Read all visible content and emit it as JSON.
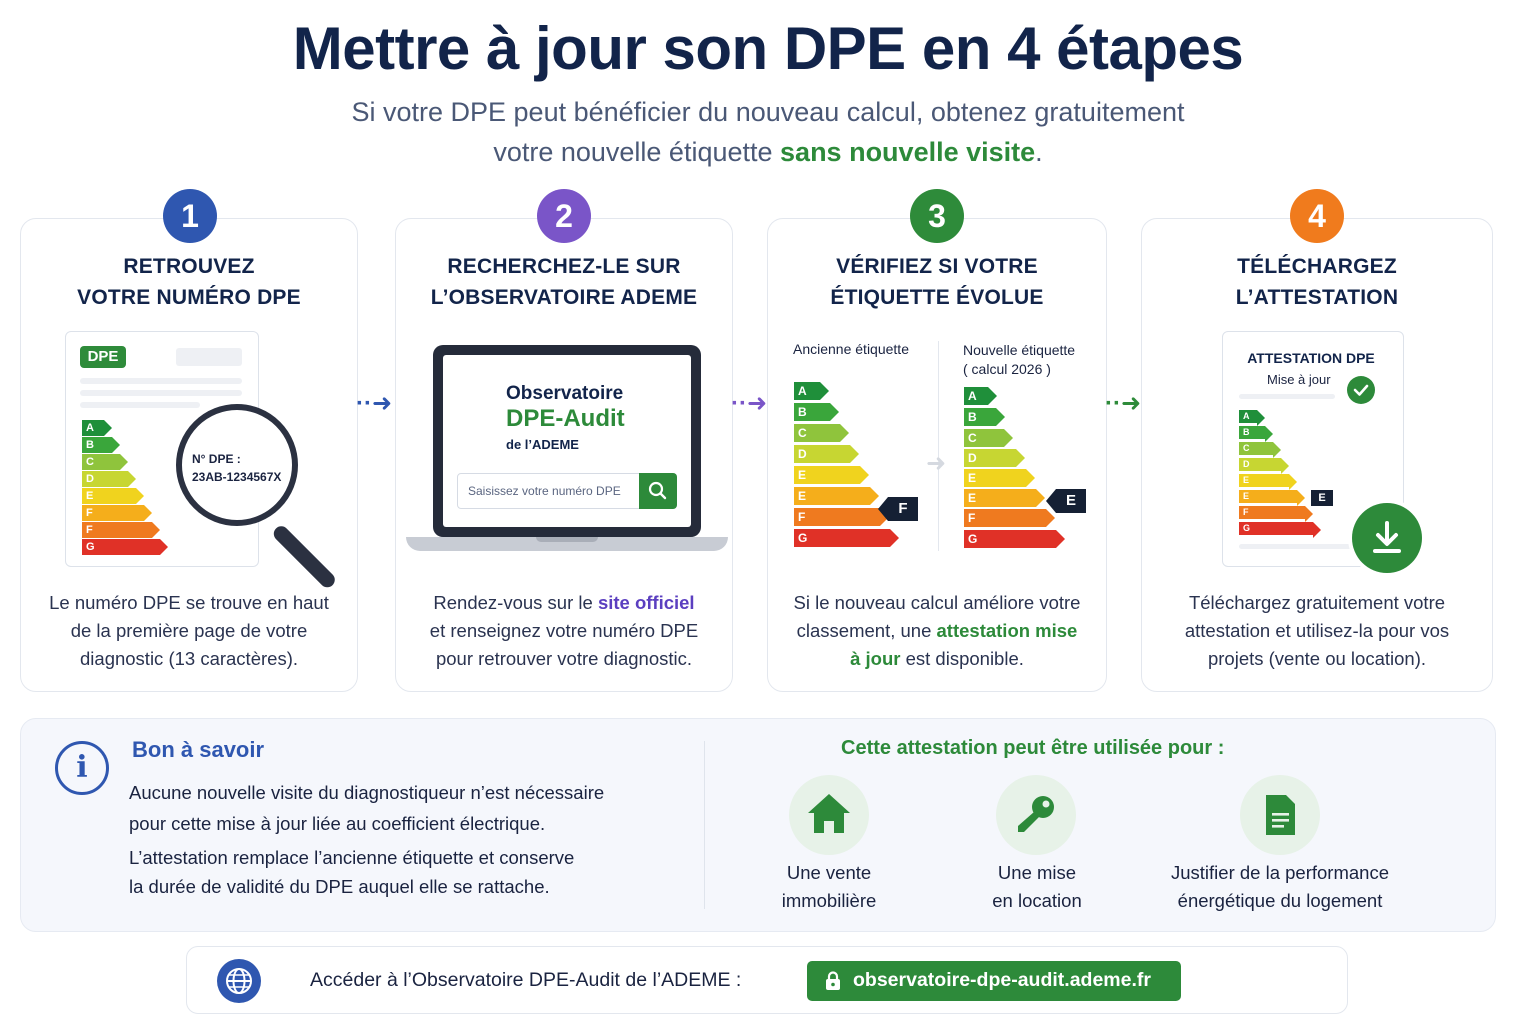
{
  "header": {
    "title": "Mettre à jour son DPE en 4 étapes",
    "subtitle_line1": "Si votre DPE peut bénéficier du nouveau calcul, obtenez gratuitement",
    "subtitle_line2_prefix": "votre nouvelle étiquette ",
    "subtitle_highlight": "sans nouvelle visite",
    "subtitle_suffix": "."
  },
  "colors": {
    "step1": "#2f57b0",
    "step2": "#7a55c8",
    "step3": "#2e8b3a",
    "step4": "#f07b1d",
    "green": "#2d8a3a"
  },
  "steps": [
    {
      "number": "1",
      "title_line1": "RETROUVEZ",
      "title_line2": "VOTRE NUMÉRO DPE",
      "doc_badge": "DPE",
      "magnifier_label": "N° DPE :",
      "magnifier_value": "23AB-1234567X",
      "letters": [
        "A",
        "B",
        "C",
        "D",
        "E",
        "F",
        "F",
        "G"
      ],
      "desc_line1": "Le numéro DPE se trouve en haut",
      "desc_line2": "de la première page de votre",
      "desc_line3": "diagnostic (13 caractères)."
    },
    {
      "number": "2",
      "title_line1": "RECHERCHEZ-LE SUR",
      "title_line2": "L’OBSERVATOIRE ADEME",
      "screen_title1": "Observatoire",
      "screen_title2": "DPE-Audit",
      "screen_title3": "de l’ADEME",
      "search_placeholder": "Saisissez votre numéro DPE",
      "desc_prefix": "Rendez-vous sur le ",
      "desc_link": "site officiel",
      "desc_line2": "et renseignez votre numéro DPE",
      "desc_line3": "pour retrouver votre diagnostic."
    },
    {
      "number": "3",
      "title_line1": "VÉRIFIEZ SI VOTRE",
      "title_line2": "ÉTIQUETTE ÉVOLUE",
      "old_label": "Ancienne étiquette",
      "new_label_line1": "Nouvelle étiquette",
      "new_label_line2": "( calcul 2026 )",
      "old_letters": [
        "A",
        "B",
        "C",
        "D",
        "E",
        "E",
        "F",
        "G"
      ],
      "new_letters": [
        "A",
        "B",
        "C",
        "D",
        "E",
        "E",
        "F",
        "G"
      ],
      "old_rating": "F",
      "new_rating": "E",
      "desc_line1": "Si le nouveau calcul améliore votre",
      "desc_line2_prefix": "classement, une ",
      "desc_highlight1": "attestation mise",
      "desc_highlight2": "à jour",
      "desc_line3_suffix": " est disponible."
    },
    {
      "number": "4",
      "title_line1": "TÉLÉCHARGEZ",
      "title_line2": "L’ATTESTATION",
      "doc_title": "ATTESTATION DPE",
      "doc_subtitle": "Mise à jour",
      "letters": [
        "A",
        "B",
        "C",
        "D",
        "E",
        "E",
        "F",
        "G"
      ],
      "rating": "E",
      "desc_line1": "Téléchargez gratuitement votre",
      "desc_line2": "attestation et utilisez-la pour vos",
      "desc_line3": "projets (vente ou location)."
    }
  ],
  "info": {
    "title": "Bon à savoir",
    "p1_line1": "Aucune nouvelle visite du diagnostiqueur n’est nécessaire",
    "p1_line2": "pour cette mise à jour liée au coefficient électrique.",
    "p2_line1": "L’attestation remplace l’ancienne étiquette et conserve",
    "p2_line2": "la durée de validité du DPE auquel elle se rattache.",
    "uses_title": "Cette attestation peut être utilisée pour :",
    "uses": [
      {
        "icon": "house-icon",
        "line1": "Une vente",
        "line2": "immobilière"
      },
      {
        "icon": "key-icon",
        "line1": "Une mise",
        "line2": "en location"
      },
      {
        "icon": "document-icon",
        "line1": "Justifier de la performance",
        "line2": "énergétique du logement"
      }
    ]
  },
  "footer": {
    "label": "Accéder à l’Observatoire DPE-Audit de l’ADEME :",
    "link": "observatoire-dpe-audit.ademe.fr"
  }
}
